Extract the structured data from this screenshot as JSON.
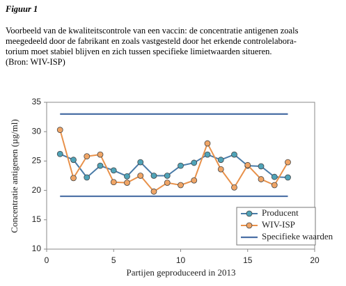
{
  "figure_label": "Figuur 1",
  "caption": [
    "Voorbeeld van de kwaliteitscontrole van een vaccin: de concentratie antigenen zoals",
    "meegedeeld door de fabrikant en zoals vastgesteld door het erkende controlelabora-",
    "torium moet stabiel blijven en zich tussen specifieke limietwaarden situeren.",
    "(Bron: WIV-ISP)"
  ],
  "chart_data": {
    "type": "line",
    "xlabel": "Partijen geproduceerd in 2013",
    "ylabel": "Concentratie antigenen (µg/ml)",
    "x": [
      1,
      2,
      3,
      4,
      5,
      6,
      7,
      8,
      9,
      10,
      11,
      12,
      13,
      14,
      15,
      16,
      17,
      18
    ],
    "series": [
      {
        "name": "Producent",
        "color": "#4a7ba7",
        "marker_color": "#4fa3b8",
        "values": [
          26.2,
          25.2,
          22.2,
          24.2,
          23.4,
          22.4,
          24.8,
          22.5,
          22.5,
          24.2,
          24.7,
          26.1,
          25.2,
          26.1,
          24.2,
          24.1,
          22.3,
          22.2
        ]
      },
      {
        "name": "WIV-ISP",
        "color": "#e8914a",
        "marker_color": "#f0a566",
        "values": [
          30.3,
          22.1,
          25.8,
          26.1,
          21.4,
          21.3,
          22.5,
          19.8,
          21.3,
          20.9,
          21.7,
          28.0,
          23.6,
          20.5,
          24.3,
          21.9,
          20.9,
          24.8
        ]
      }
    ],
    "limits": {
      "name": "Specifieke waarden",
      "color": "#4a6fa5",
      "values": [
        19,
        33
      ]
    },
    "xlim": [
      0,
      20
    ],
    "xticks": [
      0,
      5,
      10,
      15,
      20
    ],
    "ylim": [
      10,
      35
    ],
    "yticks": [
      10,
      15,
      20,
      25,
      30,
      35
    ],
    "grid": false,
    "legend": "lower-right"
  }
}
